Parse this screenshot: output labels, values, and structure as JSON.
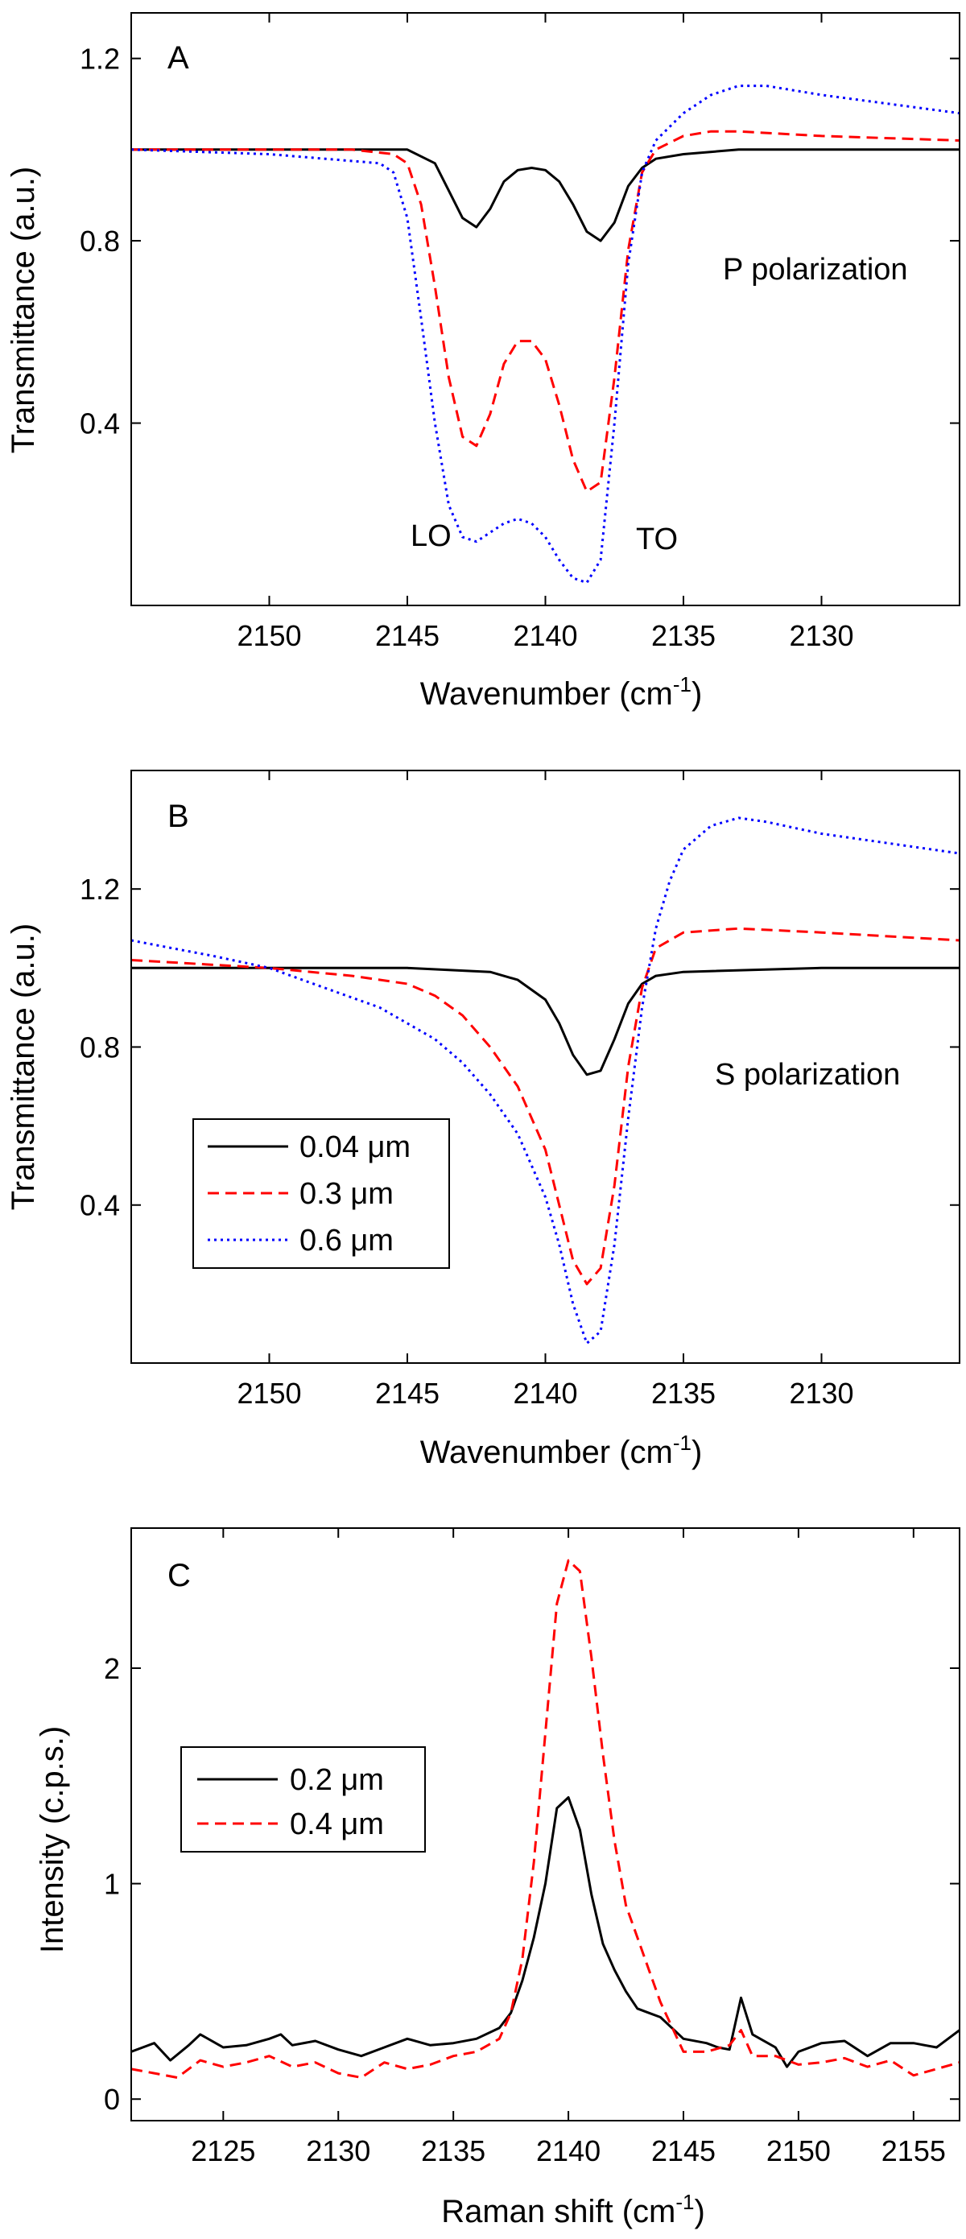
{
  "chart_data": [
    {
      "panel": "A",
      "type": "line",
      "annotation": "P polarization",
      "peak_labels": [
        "LO",
        "TO"
      ],
      "xlabel": "Wavenumber (cm",
      "xlabel_sup": "-1",
      "xlabel_end": ")",
      "ylabel": "Transmittance (a.u.)",
      "xlim": [
        2155,
        2125
      ],
      "ylim": [
        0.0,
        1.3
      ],
      "xticks": [
        2150,
        2145,
        2140,
        2135,
        2130
      ],
      "yticks": [
        0.4,
        0.8,
        1.2
      ],
      "series": [
        {
          "color": "#000000",
          "dash": "",
          "x": [
            2155,
            2147,
            2145,
            2144,
            2143.5,
            2143,
            2142.5,
            2142,
            2141.5,
            2141,
            2140.5,
            2140,
            2139.5,
            2139,
            2138.5,
            2138,
            2137.5,
            2137,
            2136.5,
            2136,
            2135,
            2133,
            2130,
            2125
          ],
          "y": [
            1.0,
            1.0,
            1.0,
            0.97,
            0.91,
            0.85,
            0.83,
            0.87,
            0.93,
            0.955,
            0.96,
            0.955,
            0.93,
            0.88,
            0.82,
            0.8,
            0.84,
            0.92,
            0.96,
            0.98,
            0.99,
            1.0,
            1.0,
            1.0
          ]
        },
        {
          "color": "#ff0000",
          "dash": "14,8",
          "x": [
            2155,
            2147,
            2145.5,
            2145,
            2144.5,
            2144,
            2143.5,
            2143,
            2142.5,
            2142,
            2141.5,
            2141,
            2140.5,
            2140,
            2139.5,
            2139,
            2138.5,
            2138,
            2137.5,
            2137,
            2136.5,
            2136,
            2135,
            2134,
            2133,
            2130,
            2125
          ],
          "y": [
            1.0,
            1.0,
            0.99,
            0.97,
            0.88,
            0.7,
            0.5,
            0.37,
            0.35,
            0.42,
            0.53,
            0.58,
            0.58,
            0.54,
            0.44,
            0.32,
            0.25,
            0.27,
            0.5,
            0.78,
            0.95,
            1.0,
            1.03,
            1.04,
            1.04,
            1.03,
            1.02
          ]
        },
        {
          "color": "#0000ff",
          "dash": "3,5",
          "x": [
            2155,
            2150,
            2146,
            2145.5,
            2145,
            2144.5,
            2144,
            2143.5,
            2143,
            2142.5,
            2142,
            2141.5,
            2141,
            2140.5,
            2140,
            2139.5,
            2139,
            2138.5,
            2138,
            2137.5,
            2137,
            2136.5,
            2136,
            2135,
            2134,
            2133,
            2132,
            2130,
            2125
          ],
          "y": [
            1.0,
            0.99,
            0.97,
            0.95,
            0.85,
            0.63,
            0.4,
            0.22,
            0.15,
            0.14,
            0.16,
            0.18,
            0.19,
            0.18,
            0.15,
            0.1,
            0.06,
            0.05,
            0.1,
            0.4,
            0.75,
            0.95,
            1.02,
            1.08,
            1.12,
            1.14,
            1.14,
            1.12,
            1.08
          ]
        }
      ]
    },
    {
      "panel": "B",
      "type": "line",
      "annotation": "S polarization",
      "xlabel": "Wavenumber (cm",
      "xlabel_sup": "-1",
      "xlabel_end": ")",
      "ylabel": "Transmittance (a.u.)",
      "xlim": [
        2155,
        2125
      ],
      "ylim": [
        0.0,
        1.5
      ],
      "xticks": [
        2150,
        2145,
        2140,
        2135,
        2130
      ],
      "yticks": [
        0.4,
        0.8,
        1.2
      ],
      "legend": {
        "placement": "lower-left",
        "entries": [
          "0.04 μm",
          "0.3 μm",
          "0.6 μm"
        ]
      },
      "series": [
        {
          "color": "#000000",
          "dash": "",
          "x": [
            2155,
            2145,
            2142,
            2141,
            2140,
            2139.5,
            2139,
            2138.5,
            2138,
            2137.5,
            2137,
            2136.5,
            2136,
            2135,
            2130,
            2125
          ],
          "y": [
            1.0,
            1.0,
            0.99,
            0.97,
            0.92,
            0.86,
            0.78,
            0.73,
            0.74,
            0.82,
            0.91,
            0.96,
            0.98,
            0.99,
            1.0,
            1.0
          ]
        },
        {
          "color": "#ff0000",
          "dash": "14,8",
          "x": [
            2155,
            2150,
            2147,
            2145,
            2144,
            2143,
            2142,
            2141,
            2140,
            2139.5,
            2139,
            2138.5,
            2138,
            2137.5,
            2137,
            2136.5,
            2136,
            2135,
            2133,
            2130,
            2125
          ],
          "y": [
            1.02,
            1.0,
            0.98,
            0.96,
            0.93,
            0.88,
            0.8,
            0.7,
            0.54,
            0.4,
            0.26,
            0.2,
            0.24,
            0.45,
            0.75,
            0.95,
            1.05,
            1.09,
            1.1,
            1.09,
            1.07
          ]
        },
        {
          "color": "#0000ff",
          "dash": "3,5",
          "x": [
            2155,
            2152,
            2150,
            2148,
            2146,
            2144,
            2143,
            2142,
            2141,
            2140,
            2139.5,
            2139,
            2138.5,
            2138,
            2137.5,
            2137,
            2136.5,
            2136,
            2135.5,
            2135,
            2134,
            2133,
            2132,
            2130,
            2125
          ],
          "y": [
            1.07,
            1.03,
            1.0,
            0.95,
            0.9,
            0.82,
            0.76,
            0.68,
            0.58,
            0.42,
            0.3,
            0.15,
            0.05,
            0.08,
            0.3,
            0.62,
            0.9,
            1.1,
            1.22,
            1.3,
            1.36,
            1.38,
            1.37,
            1.34,
            1.29
          ]
        }
      ]
    },
    {
      "panel": "C",
      "type": "line",
      "xlabel": "Raman shift (cm",
      "xlabel_sup": "-1",
      "xlabel_end": ")",
      "ylabel": "Intensity (c.p.s.)",
      "xlim": [
        2121,
        2157
      ],
      "ylim": [
        -0.1,
        2.65
      ],
      "xticks": [
        2125,
        2130,
        2135,
        2140,
        2145,
        2150,
        2155
      ],
      "yticks": [
        0,
        1,
        2
      ],
      "legend": {
        "placement": "middle-left",
        "entries": [
          "0.2 μm",
          "0.4 μm"
        ]
      },
      "series": [
        {
          "color": "#000000",
          "dash": "",
          "x": [
            2121,
            2122,
            2122.7,
            2123.5,
            2124,
            2125,
            2126,
            2127,
            2127.5,
            2128,
            2129,
            2130,
            2131,
            2132,
            2133,
            2134,
            2135,
            2136,
            2137,
            2137.5,
            2138,
            2138.5,
            2139,
            2139.5,
            2140,
            2140.5,
            2141,
            2141.5,
            2142,
            2142.5,
            2143,
            2143.5,
            2144,
            2145,
            2146,
            2146.5,
            2147,
            2147.5,
            2148,
            2149,
            2149.5,
            2150,
            2151,
            2152,
            2153,
            2154,
            2155,
            2156,
            2157
          ],
          "y": [
            0.22,
            0.26,
            0.18,
            0.25,
            0.3,
            0.24,
            0.25,
            0.28,
            0.3,
            0.25,
            0.27,
            0.23,
            0.2,
            0.24,
            0.28,
            0.25,
            0.26,
            0.28,
            0.33,
            0.4,
            0.55,
            0.75,
            1.0,
            1.35,
            1.4,
            1.25,
            0.95,
            0.72,
            0.6,
            0.5,
            0.42,
            0.4,
            0.38,
            0.28,
            0.26,
            0.24,
            0.23,
            0.47,
            0.3,
            0.24,
            0.15,
            0.22,
            0.26,
            0.27,
            0.2,
            0.26,
            0.26,
            0.24,
            0.32
          ]
        },
        {
          "color": "#ff0000",
          "dash": "14,8",
          "x": [
            2121,
            2122,
            2123,
            2124,
            2125,
            2126,
            2127,
            2128,
            2129,
            2130,
            2131,
            2132,
            2133,
            2134,
            2135,
            2136,
            2137,
            2137.5,
            2138,
            2138.5,
            2139,
            2139.5,
            2140,
            2140.5,
            2141,
            2141.5,
            2142,
            2142.5,
            2143,
            2143.5,
            2144,
            2145,
            2146,
            2147,
            2147.5,
            2148,
            2149,
            2150,
            2151,
            2152,
            2153,
            2154,
            2155,
            2156,
            2157
          ],
          "y": [
            0.14,
            0.12,
            0.1,
            0.18,
            0.15,
            0.17,
            0.2,
            0.15,
            0.17,
            0.12,
            0.1,
            0.17,
            0.14,
            0.16,
            0.2,
            0.22,
            0.28,
            0.4,
            0.65,
            1.1,
            1.7,
            2.3,
            2.5,
            2.45,
            2.05,
            1.6,
            1.2,
            0.9,
            0.75,
            0.6,
            0.45,
            0.22,
            0.22,
            0.25,
            0.32,
            0.2,
            0.2,
            0.16,
            0.17,
            0.19,
            0.15,
            0.18,
            0.11,
            0.14,
            0.17
          ]
        }
      ]
    }
  ]
}
